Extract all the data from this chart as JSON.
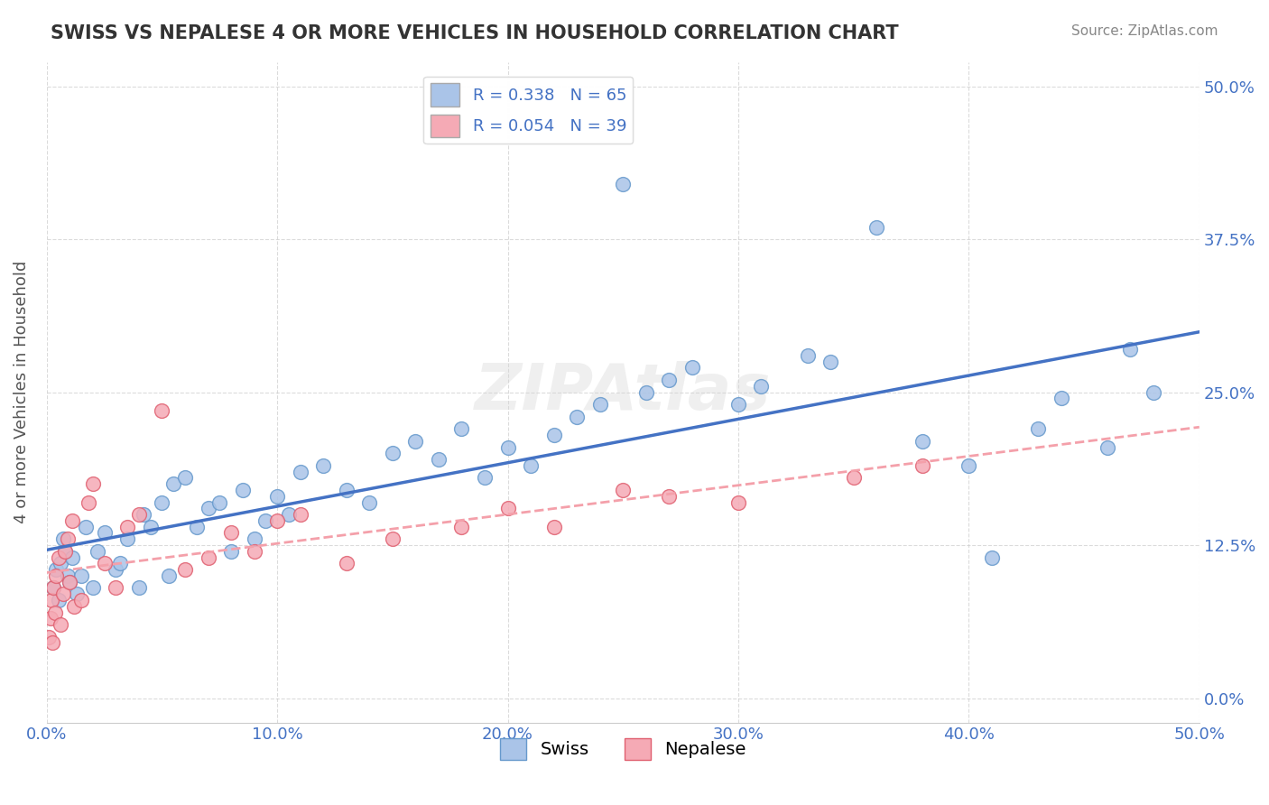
{
  "title": "SWISS VS NEPALESE 4 OR MORE VEHICLES IN HOUSEHOLD CORRELATION CHART",
  "source": "Source: ZipAtlas.com",
  "ylabel": "4 or more Vehicles in Household",
  "xlim": [
    0.0,
    50.0
  ],
  "ylim": [
    -2.0,
    52.0
  ],
  "xticks": [
    0.0,
    10.0,
    20.0,
    30.0,
    40.0,
    50.0
  ],
  "xtick_labels": [
    "0.0%",
    "10.0%",
    "20.0%",
    "30.0%",
    "40.0%",
    "50.0%"
  ],
  "yticks": [
    0.0,
    12.5,
    25.0,
    37.5,
    50.0
  ],
  "ytick_labels": [
    "0.0%",
    "12.5%",
    "25.0%",
    "37.5%",
    "50.0%"
  ],
  "grid_color": "#cccccc",
  "background_color": "#ffffff",
  "watermark": "ZIPAtlas",
  "swiss_color": "#aac4e8",
  "swiss_edge_color": "#6699cc",
  "nepalese_color": "#f5aab5",
  "nepalese_edge_color": "#e06070",
  "swiss_R": 0.338,
  "swiss_N": 65,
  "nepalese_R": 0.054,
  "nepalese_N": 39,
  "legend_color": "#4472c4",
  "swiss_trendline_color": "#4472c4",
  "nepalese_trendline_color": "#f4a0aa",
  "swiss_x": [
    0.3,
    0.4,
    0.5,
    0.6,
    0.7,
    0.8,
    0.9,
    1.0,
    1.1,
    1.3,
    1.5,
    1.7,
    2.0,
    2.2,
    2.5,
    3.0,
    3.2,
    3.5,
    4.0,
    4.2,
    4.5,
    5.0,
    5.3,
    5.5,
    6.0,
    6.5,
    7.0,
    7.5,
    8.0,
    8.5,
    9.0,
    9.5,
    10.0,
    10.5,
    11.0,
    12.0,
    13.0,
    14.0,
    15.0,
    16.0,
    17.0,
    18.0,
    19.0,
    20.0,
    21.0,
    22.0,
    23.0,
    24.0,
    25.0,
    26.0,
    27.0,
    28.0,
    30.0,
    31.0,
    33.0,
    34.0,
    36.0,
    38.0,
    40.0,
    41.0,
    43.0,
    44.0,
    46.0,
    47.0,
    48.0
  ],
  "swiss_y": [
    9.0,
    10.5,
    8.0,
    11.0,
    13.0,
    12.0,
    10.0,
    9.5,
    11.5,
    8.5,
    10.0,
    14.0,
    9.0,
    12.0,
    13.5,
    10.5,
    11.0,
    13.0,
    9.0,
    15.0,
    14.0,
    16.0,
    10.0,
    17.5,
    18.0,
    14.0,
    15.5,
    16.0,
    12.0,
    17.0,
    13.0,
    14.5,
    16.5,
    15.0,
    18.5,
    19.0,
    17.0,
    16.0,
    20.0,
    21.0,
    19.5,
    22.0,
    18.0,
    20.5,
    19.0,
    21.5,
    23.0,
    24.0,
    42.0,
    25.0,
    26.0,
    27.0,
    24.0,
    25.5,
    28.0,
    27.5,
    38.5,
    21.0,
    19.0,
    11.5,
    22.0,
    24.5,
    20.5,
    28.5,
    25.0
  ],
  "nepalese_x": [
    0.1,
    0.15,
    0.2,
    0.25,
    0.3,
    0.35,
    0.4,
    0.5,
    0.6,
    0.7,
    0.8,
    0.9,
    1.0,
    1.1,
    1.2,
    1.5,
    1.8,
    2.0,
    2.5,
    3.0,
    3.5,
    4.0,
    5.0,
    6.0,
    7.0,
    8.0,
    9.0,
    10.0,
    11.0,
    13.0,
    15.0,
    18.0,
    20.0,
    22.0,
    25.0,
    27.0,
    30.0,
    35.0,
    38.0
  ],
  "nepalese_y": [
    5.0,
    6.5,
    8.0,
    4.5,
    9.0,
    7.0,
    10.0,
    11.5,
    6.0,
    8.5,
    12.0,
    13.0,
    9.5,
    14.5,
    7.5,
    8.0,
    16.0,
    17.5,
    11.0,
    9.0,
    14.0,
    15.0,
    23.5,
    10.5,
    11.5,
    13.5,
    12.0,
    14.5,
    15.0,
    11.0,
    13.0,
    14.0,
    15.5,
    14.0,
    17.0,
    16.5,
    16.0,
    18.0,
    19.0
  ]
}
